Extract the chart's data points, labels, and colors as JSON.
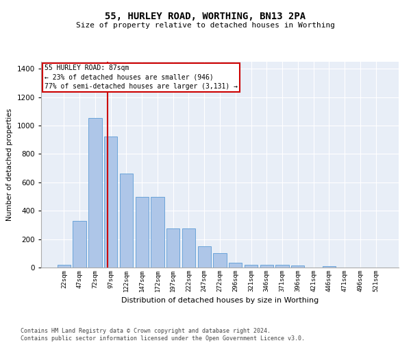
{
  "title1": "55, HURLEY ROAD, WORTHING, BN13 2PA",
  "title2": "Size of property relative to detached houses in Worthing",
  "xlabel": "Distribution of detached houses by size in Worthing",
  "ylabel": "Number of detached properties",
  "categories": [
    "22sqm",
    "47sqm",
    "72sqm",
    "97sqm",
    "122sqm",
    "147sqm",
    "172sqm",
    "197sqm",
    "222sqm",
    "247sqm",
    "272sqm",
    "296sqm",
    "321sqm",
    "346sqm",
    "371sqm",
    "396sqm",
    "421sqm",
    "446sqm",
    "471sqm",
    "496sqm",
    "521sqm"
  ],
  "values": [
    18,
    330,
    1055,
    925,
    660,
    500,
    500,
    275,
    275,
    150,
    100,
    35,
    20,
    18,
    18,
    15,
    0,
    8,
    0,
    0,
    0
  ],
  "bar_color": "#aec6e8",
  "bar_edge_color": "#5b9bd5",
  "vline_color": "#cc0000",
  "annotation_text": "55 HURLEY ROAD: 87sqm\n← 23% of detached houses are smaller (946)\n77% of semi-detached houses are larger (3,131) →",
  "annotation_box_color": "#ffffff",
  "annotation_border_color": "#cc0000",
  "ylim": [
    0,
    1450
  ],
  "yticks": [
    0,
    200,
    400,
    600,
    800,
    1000,
    1200,
    1400
  ],
  "background_color": "#e8eef7",
  "footer_line1": "Contains HM Land Registry data © Crown copyright and database right 2024.",
  "footer_line2": "Contains public sector information licensed under the Open Government Licence v3.0."
}
